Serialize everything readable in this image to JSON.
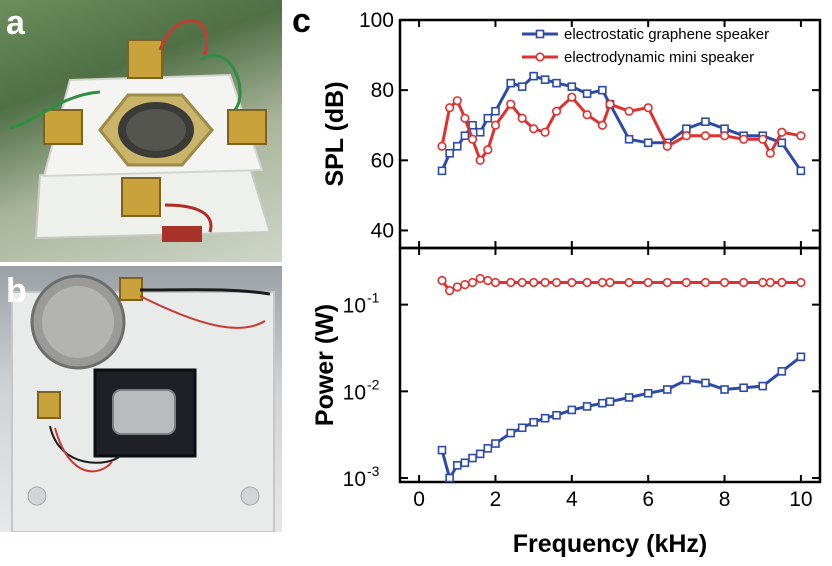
{
  "panels": {
    "a": "a",
    "b": "b",
    "c": "c"
  },
  "colors": {
    "graphene": "#2c4aa8",
    "electrodynamic": "#e0312f"
  },
  "chart_data": [
    {
      "type": "line",
      "ylabel": "SPL (dB)",
      "xlim": [
        -0.5,
        10.5
      ],
      "ylim": [
        35,
        100
      ],
      "yticks": [
        40,
        60,
        80,
        100
      ],
      "legend_position": "top-right",
      "series": [
        {
          "name": "electrostatic graphene speaker",
          "marker": "square",
          "x": [
            0.6,
            0.8,
            1.0,
            1.2,
            1.4,
            1.6,
            1.8,
            2.0,
            2.4,
            2.7,
            3.0,
            3.3,
            3.6,
            4.0,
            4.4,
            4.8,
            5.0,
            5.5,
            6.0,
            6.5,
            7.0,
            7.5,
            8.0,
            8.5,
            9.0,
            9.5,
            10.0
          ],
          "y": [
            57,
            62,
            64,
            67,
            70,
            68,
            72,
            74,
            82,
            81,
            84,
            83,
            82,
            81,
            79,
            80,
            76,
            66,
            65,
            65,
            69,
            71,
            69,
            67,
            67,
            65,
            57
          ]
        },
        {
          "name": "electrodynamic mini speaker",
          "marker": "circle",
          "x": [
            0.6,
            0.8,
            1.0,
            1.2,
            1.4,
            1.6,
            1.8,
            2.0,
            2.4,
            2.7,
            3.0,
            3.3,
            3.6,
            4.0,
            4.4,
            4.8,
            5.0,
            5.5,
            6.0,
            6.5,
            7.0,
            7.5,
            8.0,
            8.5,
            9.0,
            9.2,
            9.5,
            10.0
          ],
          "y": [
            64,
            75,
            77,
            72,
            66,
            60,
            63,
            70,
            76,
            72,
            69,
            68,
            74,
            78,
            73,
            70,
            76,
            74,
            75,
            64,
            67,
            67,
            67,
            66,
            66,
            62,
            68,
            67
          ]
        }
      ]
    },
    {
      "type": "line",
      "xlabel": "Frequency (kHz)",
      "ylabel": "Power (W)",
      "yscale": "log",
      "xlim": [
        -0.5,
        10.5
      ],
      "ylim": [
        0.0009,
        0.45
      ],
      "xticks": [
        0,
        2,
        4,
        6,
        8,
        10
      ],
      "yticks": [
        0.001,
        0.01,
        0.1
      ],
      "ytick_bases": [
        "10",
        "10",
        "10"
      ],
      "ytick_exps": [
        "-3",
        "-2",
        "-1"
      ],
      "series": [
        {
          "name": "electrostatic graphene speaker",
          "marker": "square",
          "x": [
            0.6,
            0.8,
            1.0,
            1.2,
            1.4,
            1.6,
            1.8,
            2.0,
            2.4,
            2.7,
            3.0,
            3.3,
            3.6,
            4.0,
            4.4,
            4.8,
            5.0,
            5.5,
            6.0,
            6.5,
            7.0,
            7.5,
            8.0,
            8.5,
            9.0,
            9.5,
            10.0
          ],
          "y": [
            0.0021,
            0.001,
            0.0014,
            0.0015,
            0.0017,
            0.0019,
            0.0022,
            0.0025,
            0.0033,
            0.0038,
            0.0044,
            0.0049,
            0.0053,
            0.0061,
            0.0067,
            0.0073,
            0.0076,
            0.0085,
            0.0095,
            0.0105,
            0.0135,
            0.0125,
            0.0105,
            0.011,
            0.0115,
            0.017,
            0.025
          ]
        },
        {
          "name": "electrodynamic mini speaker",
          "marker": "circle",
          "x": [
            0.6,
            0.8,
            1.0,
            1.2,
            1.4,
            1.6,
            1.8,
            2.0,
            2.4,
            2.7,
            3.0,
            3.3,
            3.6,
            4.0,
            4.4,
            4.8,
            5.0,
            5.5,
            6.0,
            6.5,
            7.0,
            7.5,
            8.0,
            8.5,
            9.0,
            9.2,
            9.5,
            10.0
          ],
          "y": [
            0.19,
            0.145,
            0.16,
            0.17,
            0.18,
            0.2,
            0.19,
            0.18,
            0.18,
            0.18,
            0.18,
            0.18,
            0.18,
            0.18,
            0.18,
            0.18,
            0.18,
            0.18,
            0.18,
            0.18,
            0.18,
            0.18,
            0.18,
            0.18,
            0.18,
            0.18,
            0.18,
            0.18
          ]
        }
      ]
    }
  ]
}
